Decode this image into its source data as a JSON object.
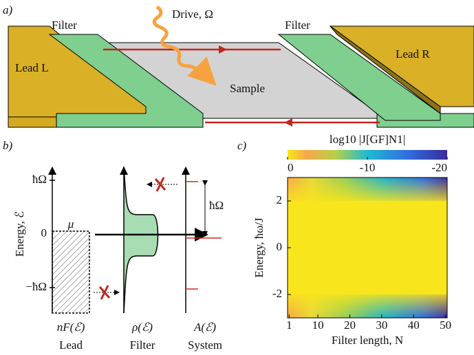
{
  "panel_a": {
    "label": "a)",
    "filter_left": "Filter",
    "filter_right": "Filter",
    "drive": "Drive, Ω",
    "lead_left": "Lead L",
    "lead_right": "Lead R",
    "sample": "Sample"
  },
  "panel_b": {
    "label": "b)",
    "y_label": "Energy, ℰ",
    "yticks": [
      "ħΩ",
      "0",
      "−ħΩ"
    ],
    "mu": "μ",
    "gap": "ħΩ",
    "columns": [
      {
        "function": "nF(ℰ)",
        "name": "Lead"
      },
      {
        "function": "ρ(ℰ)",
        "name": "Filter"
      },
      {
        "function": "A(ℰ)",
        "name": "System"
      }
    ]
  },
  "panel_c": {
    "label": "c)",
    "type": "heatmap",
    "colorbar_label": "log10 |J[GF]N1|",
    "colorbar_lim": [
      0,
      -20
    ],
    "colorbar_ticks": [
      0,
      -10,
      -20
    ],
    "xlabel": "Filter length, N",
    "ylabel": "Energy, ħω/J",
    "xlim": [
      0.5,
      50.5
    ],
    "xticks": [
      1,
      10,
      20,
      30,
      40,
      50
    ],
    "ylim": [
      -3,
      3
    ],
    "yticks": [
      -2,
      0,
      2
    ]
  }
}
